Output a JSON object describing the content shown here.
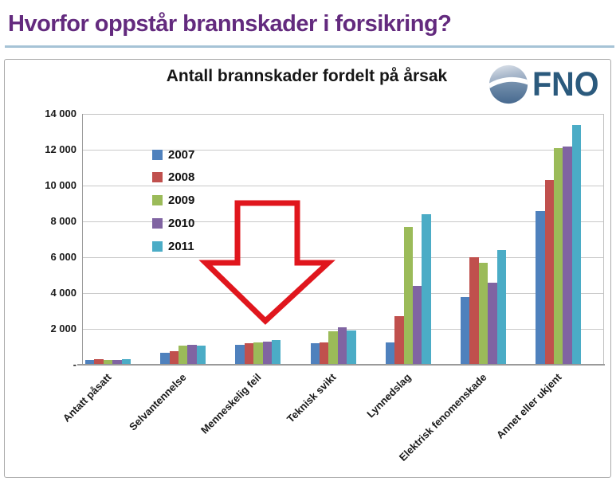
{
  "page": {
    "title": "Hvorfor oppstår brannskader i forsikring?",
    "title_color": "#632a7e",
    "underline_color": "#a6c3d6"
  },
  "logo": {
    "text": "FNO",
    "text_color": "#2b5a7d",
    "icon": "sphere-swoosh-icon"
  },
  "annotation": {
    "shape": "red-down-arrow",
    "color": "#e0161d",
    "points_to_category": "Menneskelig feil"
  },
  "chart_data": {
    "type": "bar",
    "title": "Antall brannskader fordelt på årsak",
    "categories": [
      "Antatt påsatt",
      "Selvantennelse",
      "Menneskelig feil",
      "Teknisk svikt",
      "Lynnedslag",
      "Elektrisk fenomenskade",
      "Annet eller ukjent"
    ],
    "series": [
      {
        "name": "2007",
        "color": "#4f81bd",
        "values": [
          250,
          650,
          1100,
          1200,
          1250,
          3800,
          8600
        ]
      },
      {
        "name": "2008",
        "color": "#c0504d",
        "values": [
          300,
          750,
          1200,
          1250,
          2700,
          6000,
          10300
        ]
      },
      {
        "name": "2009",
        "color": "#9bbb59",
        "values": [
          250,
          1050,
          1250,
          1850,
          7700,
          5700,
          12100
        ]
      },
      {
        "name": "2010",
        "color": "#8064a2",
        "values": [
          250,
          1100,
          1300,
          2100,
          4400,
          4600,
          12200
        ]
      },
      {
        "name": "2011",
        "color": "#4bacc6",
        "values": [
          300,
          1050,
          1400,
          1900,
          8400,
          6400,
          13400
        ]
      }
    ],
    "xlabel": "",
    "ylabel": "",
    "ylim": [
      0,
      14000
    ],
    "ytick_step": 2000,
    "ytick_labels": [
      "-",
      "2 000",
      "4 000",
      "6 000",
      "8 000",
      "10 000",
      "12 000",
      "14 000"
    ],
    "grid": true,
    "legend_position": "inside-upper-left",
    "xtick_rotation_deg": 45
  }
}
